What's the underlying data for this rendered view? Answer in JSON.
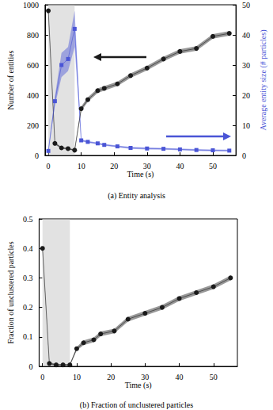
{
  "chart_data": [
    {
      "type": "line",
      "title": "(a) Entity analysis",
      "x_label": "Time (s)",
      "y_label": "Number of entities",
      "y2_label": "Average entity size (# particles)",
      "xlim": [
        -1,
        57
      ],
      "xticks": [
        0,
        10,
        20,
        30,
        40,
        50
      ],
      "ylim": [
        0,
        1000
      ],
      "yticks": [
        0,
        200,
        400,
        600,
        800,
        1000
      ],
      "y2lim": [
        0,
        50
      ],
      "y2ticks": [
        0,
        10,
        20,
        30,
        40,
        50
      ],
      "shaded_x": [
        0,
        8
      ],
      "x": [
        0,
        2,
        4,
        6,
        8,
        10,
        12,
        15,
        17,
        21,
        25,
        30,
        35,
        40,
        45,
        50,
        55
      ],
      "series": [
        {
          "color": "#1a1a1a",
          "marker": "circle",
          "values": [
            960,
            80,
            50,
            45,
            35,
            310,
            370,
            430,
            445,
            475,
            530,
            580,
            640,
            690,
            710,
            790,
            810
          ],
          "errors": [
            10,
            8,
            5,
            5,
            5,
            15,
            15,
            15,
            15,
            15,
            15,
            15,
            15,
            15,
            15,
            15,
            15
          ]
        },
        {
          "color": "#4a55d6",
          "marker": "square",
          "axis": "y2",
          "values": [
            1.5,
            18,
            30,
            32,
            42,
            5,
            4.5,
            4,
            3.5,
            3,
            2.5,
            2.3,
            2.2,
            2,
            1.8,
            1.7,
            1.6
          ],
          "errors": [
            0.3,
            1.5,
            4,
            4,
            6,
            0.3,
            0.3,
            0.3,
            0.3,
            0.3,
            0.3,
            0.3,
            0.3,
            0.3,
            0.3,
            0.3,
            0.3
          ]
        }
      ]
    },
    {
      "type": "line",
      "title": "(b) Fraction of unclustered particles",
      "x_label": "Time (s)",
      "y_label": "Fraction of unclustered particles",
      "xlim": [
        -1,
        57
      ],
      "xticks": [
        0,
        10,
        20,
        30,
        40,
        50
      ],
      "ylim": [
        0,
        0.5
      ],
      "yticks": [
        0,
        0.1,
        0.2,
        0.3,
        0.4,
        0.5
      ],
      "shaded_x": [
        0,
        8
      ],
      "x": [
        0,
        2,
        4,
        6,
        8,
        10,
        12,
        15,
        17,
        21,
        25,
        30,
        35,
        40,
        45,
        50,
        55
      ],
      "series": [
        {
          "color": "#1a1a1a",
          "marker": "circle",
          "values": [
            0.4,
            0.01,
            0.005,
            0.005,
            0.005,
            0.06,
            0.08,
            0.09,
            0.11,
            0.12,
            0.16,
            0.18,
            0.2,
            0.23,
            0.25,
            0.27,
            0.3
          ],
          "errors": [
            0.005,
            0.004,
            0.003,
            0.003,
            0.003,
            0.006,
            0.008,
            0.008,
            0.008,
            0.008,
            0.008,
            0.008,
            0.008,
            0.008,
            0.008,
            0.008,
            0.008
          ]
        }
      ]
    }
  ]
}
